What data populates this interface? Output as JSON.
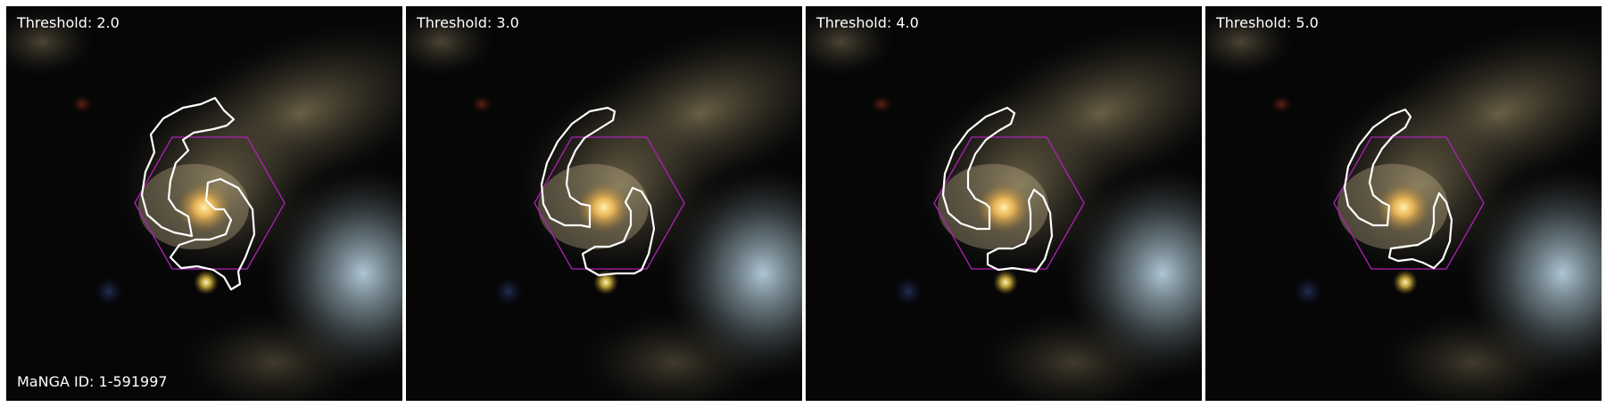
{
  "panels": [
    {
      "threshold_label": "Threshold: 2.0",
      "threshold": 2.0
    },
    {
      "threshold_label": "Threshold: 3.0",
      "threshold": 3.0
    },
    {
      "threshold_label": "Threshold: 4.0",
      "threshold": 4.0
    },
    {
      "threshold_label": "Threshold: 5.0",
      "threshold": 5.0
    }
  ],
  "galaxy_id_label": "MaNGA ID: 1-591997",
  "colors": {
    "contour": "#ffffff",
    "ifu_hexagon": "#b020b8",
    "background": "#050506",
    "galaxy_core": "#ffd070",
    "companion_galaxy": "#9cc0d8"
  }
}
